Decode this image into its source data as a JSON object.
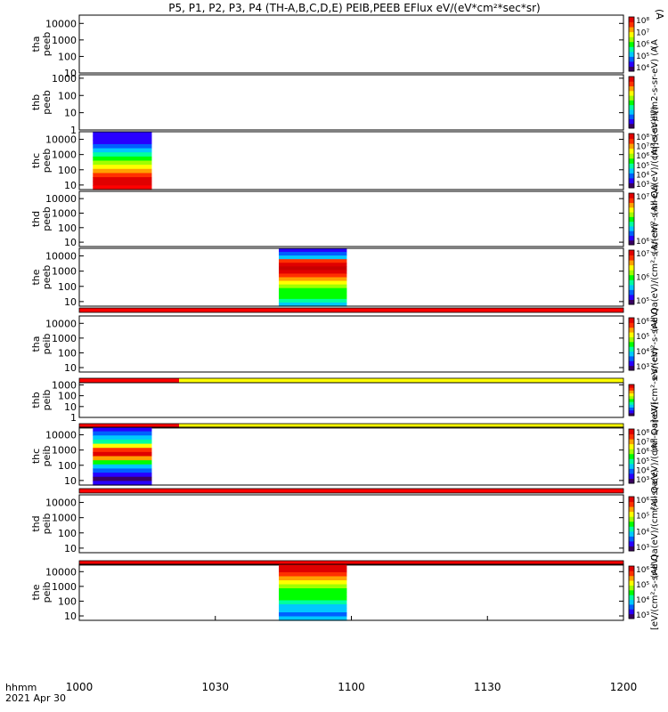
{
  "title": "P5, P1, P2, P3, P4 (TH-A,B,C,D,E) PEIB,PEEB EFlux eV/(eV*cm²*sec*sr)",
  "title_suffix": "(A",
  "time_axis": {
    "label_line1": "hhmm",
    "label_line2": "2021 Apr 30",
    "ticks": [
      "1000",
      "1030",
      "1100",
      "1130",
      "1200"
    ]
  },
  "colors": {
    "flag_red": "#ff0000",
    "flag_yellow": "#ffff00",
    "colorbar": [
      "#3a0060",
      "#2800ff",
      "#0060ff",
      "#00c8ff",
      "#00ffa0",
      "#00ff00",
      "#a0ff00",
      "#ffff00",
      "#ffa000",
      "#ff3000",
      "#e00000"
    ]
  },
  "panels": [
    {
      "probe": "tha",
      "product": "peeb",
      "y_ticks": [
        "10",
        "100",
        "1000",
        "10000"
      ],
      "y_log_range": [
        1,
        4.5
      ],
      "cb_ticks": [
        "10⁴",
        "10⁵",
        "10⁶",
        "10⁷",
        "10⁸"
      ],
      "cb_label": "(A",
      "flag": null,
      "data": null
    },
    {
      "probe": "thb",
      "product": "peeb",
      "y_ticks": [
        "1",
        "10",
        "100",
        "1000"
      ],
      "y_log_range": [
        0,
        3.2
      ],
      "cb_ticks": [],
      "cb_label": "(A|]e(eV)ll[m2-s-sr-eV) (A",
      "flag": null,
      "data": null
    },
    {
      "probe": "thc",
      "product": "peeb",
      "y_ticks": [
        "10",
        "100",
        "1000",
        "10000"
      ],
      "y_log_range": [
        0.7,
        4.5
      ],
      "cb_ticks": [
        "10³",
        "10⁴",
        "10⁵",
        "10⁶",
        "10⁷",
        "10⁸"
      ],
      "cb_label": "(All Qa(eV)/(cm²-s-sr-eV)",
      "flag": null,
      "data": {
        "t_start": 1003,
        "t_end": 1016,
        "profile": [
          "#2800ff",
          "#2800ff",
          "#2800ff",
          "#0060ff",
          "#00c8ff",
          "#00ffa0",
          "#00ff00",
          "#a0ff00",
          "#ffff00",
          "#ffa000",
          "#ff3000",
          "#e00000",
          "#e00000",
          "#ff0000"
        ]
      }
    },
    {
      "probe": "thd",
      "product": "peeb",
      "y_ticks": [
        "10",
        "100",
        "1000",
        "10000"
      ],
      "y_log_range": [
        0.7,
        4.5
      ],
      "cb_ticks": [
        "10⁶",
        "10⁷"
      ],
      "cb_label": "(A/(cm²-s-sr-eV)",
      "flag": null,
      "data": null
    },
    {
      "probe": "the",
      "product": "peeb",
      "y_ticks": [
        "10",
        "100",
        "1000",
        "10000"
      ],
      "y_log_range": [
        0.7,
        4.5
      ],
      "cb_ticks": [
        "10⁵",
        "10⁶",
        "10⁷"
      ],
      "cb_label": "(All Qa(eV)/(cm²-s-sr-eV)",
      "flag": "red",
      "data": {
        "t_start": 1044,
        "t_end": 1059,
        "profile": [
          "#2800ff",
          "#0060ff",
          "#00c8ff",
          "#ff3000",
          "#e00000",
          "#c80000",
          "#e00000",
          "#ff3000",
          "#ffa000",
          "#ffff00",
          "#a0ff00",
          "#00ff00",
          "#00ff00",
          "#00ff00",
          "#00ffa0",
          "#00c8ff"
        ]
      }
    },
    {
      "probe": "tha",
      "product": "peib",
      "y_ticks": [
        "10",
        "100",
        "1000",
        "10000"
      ],
      "y_log_range": [
        0.7,
        4.5
      ],
      "cb_ticks": [
        "10³",
        "10⁴",
        "10⁵",
        "10⁶"
      ],
      "cb_label": "eV/(cm²-s-sr-eV)",
      "flag": "red-yellow",
      "data": null
    },
    {
      "probe": "thb",
      "product": "peib",
      "y_ticks": [
        "1",
        "10",
        "100",
        "1000"
      ],
      "y_log_range": [
        0,
        3.2
      ],
      "cb_ticks": [],
      "cb_label": "(All Qa]eV/(cm²-s-sr-eV)",
      "flag": "red-yellow",
      "data": null
    },
    {
      "probe": "thc",
      "product": "peib",
      "y_ticks": [
        "10",
        "100",
        "1000",
        "10000"
      ],
      "y_log_range": [
        0.7,
        4.5
      ],
      "cb_ticks": [
        "10³",
        "10⁴",
        "10⁵",
        "10⁶",
        "10⁷",
        "10⁸"
      ],
      "cb_label": "(All Qa(eV)/(cm²-s-sr-eV)",
      "flag": "red",
      "data": {
        "t_start": 1003,
        "t_end": 1016,
        "profile": [
          "#2800ff",
          "#0060ff",
          "#00c8ff",
          "#00ffa0",
          "#ffff00",
          "#ff3000",
          "#e00000",
          "#ffa000",
          "#00ff00",
          "#00c8ff",
          "#0060ff",
          "#2800ff",
          "#3a0060",
          "#2800ff"
        ]
      }
    },
    {
      "probe": "thd",
      "product": "peib",
      "y_ticks": [
        "10",
        "100",
        "1000",
        "10000"
      ],
      "y_log_range": [
        0.7,
        4.5
      ],
      "cb_ticks": [
        "10³",
        "10⁴",
        "10⁵",
        "10⁶"
      ],
      "cb_label": "(All Qa(eV)/(cm²-s-sr-eV)",
      "flag": "red",
      "data": null
    },
    {
      "probe": "the",
      "product": "peib",
      "y_ticks": [
        "10",
        "100",
        "1000",
        "10000"
      ],
      "y_log_range": [
        0.7,
        4.5
      ],
      "cb_ticks": [
        "10³",
        "10⁴",
        "10⁵",
        "10⁶"
      ],
      "cb_label": "[eV/(cm²-s-sr-eV)",
      "flag": null,
      "data": {
        "t_start": 1044,
        "t_end": 1059,
        "profile": [
          "#e00000",
          "#e00000",
          "#ff3000",
          "#ffa000",
          "#ffff00",
          "#a0ff00",
          "#00ff00",
          "#00ff00",
          "#00ff00",
          "#00ffa0",
          "#00c8ff",
          "#00c8ff",
          "#0060ff",
          "#00c8ff"
        ]
      }
    }
  ],
  "chart_data": {
    "type": "heatmap",
    "title": "P5, P1, P2, P3, P4 (TH-A,B,C,D,E) PEIB,PEEB EFlux eV/(eV*cm²*sec*sr)",
    "x_label": "hhmm 2021 Apr 30",
    "x_ticks": [
      "1000",
      "1030",
      "1100",
      "1130",
      "1200"
    ],
    "x_range": [
      "10:00",
      "12:00"
    ],
    "y_scale": "log",
    "series": [
      {
        "name": "tha peeb",
        "data_intervals": []
      },
      {
        "name": "thb peeb",
        "data_intervals": []
      },
      {
        "name": "thc peeb",
        "data_intervals": [
          [
            "10:03",
            "10:16"
          ]
        ]
      },
      {
        "name": "thd peeb",
        "data_intervals": []
      },
      {
        "name": "the peeb",
        "data_intervals": [
          [
            "10:44",
            "10:59"
          ]
        ]
      },
      {
        "name": "tha peib",
        "data_intervals": []
      },
      {
        "name": "thb peib",
        "data_intervals": []
      },
      {
        "name": "thc peib",
        "data_intervals": [
          [
            "10:03",
            "10:16"
          ]
        ]
      },
      {
        "name": "thd peib",
        "data_intervals": []
      },
      {
        "name": "the peib",
        "data_intervals": [
          [
            "10:44",
            "10:59"
          ]
        ]
      }
    ],
    "flag_bars": [
      {
        "after_panel": "the peeb",
        "segments": [
          {
            "from": "10:00",
            "to": "12:00",
            "color": "red"
          }
        ]
      },
      {
        "after_panel": "tha peib",
        "segments": [
          {
            "from": "10:00",
            "to": "10:22",
            "color": "red"
          },
          {
            "from": "10:22",
            "to": "12:00",
            "color": "yellow"
          }
        ]
      },
      {
        "after_panel": "thb peib",
        "segments": [
          {
            "from": "10:00",
            "to": "10:22",
            "color": "red"
          },
          {
            "from": "10:22",
            "to": "12:00",
            "color": "yellow"
          }
        ]
      },
      {
        "after_panel": "thc peib",
        "segments": [
          {
            "from": "10:00",
            "to": "12:00",
            "color": "red"
          }
        ]
      },
      {
        "after_panel": "thd peib",
        "segments": [
          {
            "from": "10:00",
            "to": "12:00",
            "color": "red"
          }
        ]
      }
    ]
  }
}
